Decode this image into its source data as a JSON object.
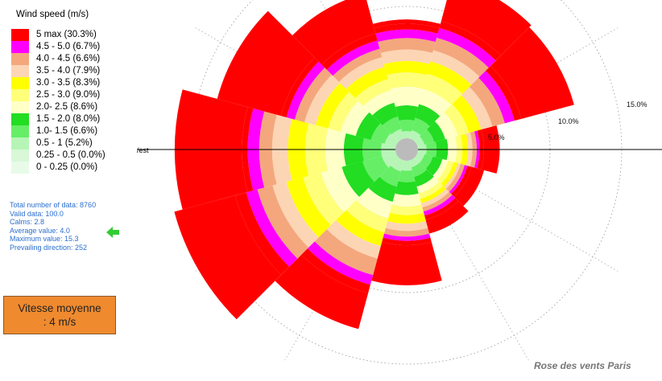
{
  "legend": {
    "title": "Wind speed (m/s)",
    "items": [
      {
        "label": "5 max (30.3%)",
        "color": "#ff0000"
      },
      {
        "label": "4.5 - 5.0 (6.7%)",
        "color": "#ff00ff"
      },
      {
        "label": "4.0 - 4.5 (6.6%)",
        "color": "#f4a77d"
      },
      {
        "label": "3.5 - 4.0  (7.9%)",
        "color": "#fcd5b5"
      },
      {
        "label": "3.0 - 3.5 (8.3%)",
        "color": "#ffff00"
      },
      {
        "label": "2.5 - 3.0 (9.0%)",
        "color": "#ffff7a"
      },
      {
        "label": "2.0- 2.5 (8.6%)",
        "color": "#ffffc8"
      },
      {
        "label": "1.5 - 2.0 (8.0%)",
        "color": "#22dd22"
      },
      {
        "label": "1.0- 1.5 (6.6%)",
        "color": "#66ee66"
      },
      {
        "label": "0.5 - 1 (5.2%)",
        "color": "#b6f5b6"
      },
      {
        "label": "0.25 - 0.5 (0.0%)",
        "color": "#d8f8d8"
      },
      {
        "label": "0 - 0.25 (0.0%)",
        "color": "#e8fbe8"
      }
    ]
  },
  "stats": {
    "total": "Total number of data: 8760",
    "valid": "Valid data: 100.0",
    "calms": "Calms: 2.8",
    "average": "Average value: 4.0",
    "maximum": "Maximum value: 15.3",
    "prevailing": "Prevailing direction: 252"
  },
  "average_box": {
    "line1": "Vitesse moyenne",
    "line2": ": 4 m/s"
  },
  "ring_labels": {
    "r5": "5.0%",
    "r10": "10.0%",
    "r15": "15.0%"
  },
  "west_label": "/est",
  "caption": "Rose des vents Paris",
  "colors": {
    "red": "#ff0000",
    "magenta": "#ff00ff",
    "salmon": "#f4a77d",
    "peach": "#fcd5b5",
    "yellow": "#ffff00",
    "light_yellow": "#ffff7a",
    "cream": "#ffffc8",
    "green": "#22dd22",
    "light_green": "#66ee66",
    "pale_green": "#b6f5b6",
    "center": "#bbbbbb",
    "stats_text": "#2b6fce",
    "arrow": "#33cc33",
    "box": "#ef8a2e"
  },
  "chart_data": {
    "type": "windrose",
    "title": "Wind speed (m/s)",
    "rings_percent": [
      5,
      10,
      15
    ],
    "bins": [
      "0-0.25",
      "0.25-0.5",
      "0.5-1",
      "1.0-1.5",
      "1.5-2.0",
      "2.0-2.5",
      "2.5-3.0",
      "3.0-3.5",
      "3.5-4.0",
      "4.0-4.5",
      "4.5-5.0",
      "5 max"
    ],
    "bin_percent": [
      0.0,
      0.0,
      5.2,
      6.6,
      8.0,
      8.6,
      9.0,
      8.3,
      7.9,
      6.6,
      6.7,
      30.3
    ],
    "calms": 2.8,
    "average_speed": 4.0,
    "max_speed": 15.3,
    "prevailing_direction": 252,
    "sectors": [
      {
        "angle": 0,
        "cum": [
          0.5,
          1.3,
          2.3,
          3.6,
          4.6,
          5.4,
          6.2,
          7.0,
          7.6,
          8.0,
          8.3
        ]
      },
      {
        "angle": 30,
        "cum": [
          0.6,
          1.5,
          2.5,
          3.6,
          4.7,
          5.6,
          6.4,
          7.3,
          8.0,
          8.5,
          11.5
        ]
      },
      {
        "angle": 60,
        "cum": [
          0.5,
          1.2,
          2.0,
          2.9,
          3.7,
          4.6,
          5.4,
          6.3,
          7.0,
          7.5,
          11.3
        ]
      },
      {
        "angle": 90,
        "cum": [
          0.6,
          1.3,
          2.1,
          2.7,
          3.1,
          3.5,
          3.8,
          4.1,
          4.3,
          4.6,
          5.7
        ]
      },
      {
        "angle": 120,
        "cum": [
          0.5,
          1.1,
          1.8,
          2.2,
          2.6,
          2.9,
          3.1,
          3.4,
          3.6,
          3.9,
          4.8
        ]
      },
      {
        "angle": 150,
        "cum": [
          0.5,
          1.2,
          1.9,
          2.4,
          2.8,
          3.1,
          3.4,
          3.7,
          4.0,
          4.3,
          5.3
        ]
      },
      {
        "angle": 180,
        "cum": [
          0.7,
          1.5,
          2.4,
          3.2,
          3.8,
          4.4,
          4.9,
          5.3,
          5.6,
          5.9,
          8.7
        ]
      },
      {
        "angle": 210,
        "cum": [
          0.8,
          1.9,
          3.0,
          4.2,
          5.2,
          6.2,
          7.1,
          8.3,
          9.0,
          9.6,
          12.2
        ]
      },
      {
        "angle": 240,
        "cum": [
          1.0,
          2.4,
          3.9,
          5.4,
          6.7,
          7.9,
          8.9,
          10.0,
          10.8,
          11.6,
          16.0
        ]
      },
      {
        "angle": 270,
        "cum": [
          1.0,
          2.3,
          3.6,
          4.9,
          6.3,
          7.5,
          8.6,
          9.5,
          10.3,
          10.7,
          15.4
        ]
      },
      {
        "angle": 300,
        "cum": [
          0.8,
          1.8,
          2.9,
          4.0,
          4.9,
          5.8,
          6.6,
          7.3,
          7.9,
          8.3,
          12.9
        ]
      },
      {
        "angle": 330,
        "cum": [
          0.7,
          1.6,
          2.6,
          3.5,
          4.3,
          5.2,
          5.9,
          6.5,
          7.1,
          7.6,
          10.5
        ]
      }
    ]
  }
}
